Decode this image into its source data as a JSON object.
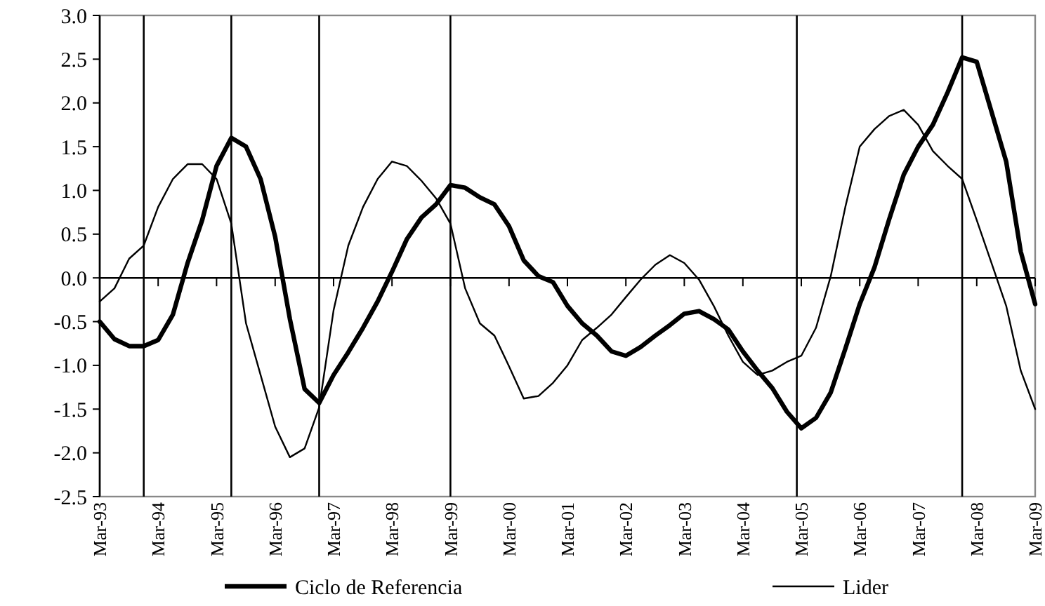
{
  "chart_data": {
    "type": "line",
    "x": [
      "1993-03",
      "1993-06",
      "1993-09",
      "1993-12",
      "1994-03",
      "1994-06",
      "1994-09",
      "1994-12",
      "1995-03",
      "1995-06",
      "1995-09",
      "1995-12",
      "1996-03",
      "1996-06",
      "1996-09",
      "1996-12",
      "1997-03",
      "1997-06",
      "1997-09",
      "1997-12",
      "1998-03",
      "1998-06",
      "1998-09",
      "1998-12",
      "1999-03",
      "1999-06",
      "1999-09",
      "1999-12",
      "2000-03",
      "2000-06",
      "2000-09",
      "2000-12",
      "2001-03",
      "2001-06",
      "2001-09",
      "2001-12",
      "2002-03",
      "2002-06",
      "2002-09",
      "2002-12",
      "2003-03",
      "2003-06",
      "2003-09",
      "2003-12",
      "2004-03",
      "2004-06",
      "2004-09",
      "2004-12",
      "2005-03",
      "2005-06",
      "2005-09",
      "2005-12",
      "2006-03",
      "2006-06",
      "2006-09",
      "2006-12",
      "2007-03",
      "2007-06",
      "2007-09",
      "2007-12",
      "2008-03",
      "2008-06",
      "2008-09",
      "2008-12",
      "2009-03"
    ],
    "series": [
      {
        "name": "Ciclo de Referencia",
        "color": "#000000",
        "values": [
          -0.5,
          -0.7,
          -0.78,
          -0.78,
          -0.71,
          -0.42,
          0.17,
          0.66,
          1.28,
          1.6,
          1.5,
          1.13,
          0.47,
          -0.47,
          -1.27,
          -1.43,
          -1.11,
          -0.85,
          -0.57,
          -0.27,
          0.07,
          0.44,
          0.69,
          0.84,
          1.06,
          1.03,
          0.92,
          0.84,
          0.59,
          0.2,
          0.02,
          -0.05,
          -0.32,
          -0.52,
          -0.66,
          -0.84,
          -0.89,
          -0.79,
          -0.66,
          -0.54,
          -0.41,
          -0.38,
          -0.47,
          -0.59,
          -0.84,
          -1.06,
          -1.26,
          -1.53,
          -1.72,
          -1.6,
          -1.31,
          -0.81,
          -0.3,
          0.12,
          0.67,
          1.18,
          1.5,
          1.75,
          2.12,
          2.52,
          2.47,
          1.9,
          1.33,
          0.3,
          -0.3
        ]
      },
      {
        "name": "Lider",
        "color": "#000000",
        "values": [
          -0.27,
          -0.12,
          0.22,
          0.37,
          0.81,
          1.13,
          1.3,
          1.3,
          1.13,
          0.62,
          -0.52,
          -1.11,
          -1.7,
          -2.05,
          -1.95,
          -1.48,
          -0.37,
          0.37,
          0.81,
          1.13,
          1.33,
          1.28,
          1.11,
          0.91,
          0.62,
          -0.12,
          -0.52,
          -0.66,
          -1.01,
          -1.38,
          -1.35,
          -1.2,
          -1.0,
          -0.71,
          -0.57,
          -0.42,
          -0.22,
          -0.02,
          0.15,
          0.26,
          0.17,
          -0.02,
          -0.32,
          -0.66,
          -0.96,
          -1.11,
          -1.06,
          -0.96,
          -0.89,
          -0.57,
          0.02,
          0.81,
          1.5,
          1.7,
          1.85,
          1.92,
          1.75,
          1.45,
          1.28,
          1.13,
          0.66,
          0.17,
          -0.32,
          -1.06,
          -1.5
        ]
      }
    ],
    "xlim": [
      "1993-03",
      "2009-03"
    ],
    "xticks": [
      {
        "value": "1993-03",
        "label": "Mar-93"
      },
      {
        "value": "1994-03",
        "label": "Mar-94"
      },
      {
        "value": "1995-03",
        "label": "Mar-95"
      },
      {
        "value": "1996-03",
        "label": "Mar-96"
      },
      {
        "value": "1997-03",
        "label": "Mar-97"
      },
      {
        "value": "1998-03",
        "label": "Mar-98"
      },
      {
        "value": "1999-03",
        "label": "Mar-99"
      },
      {
        "value": "2000-03",
        "label": "Mar-00"
      },
      {
        "value": "2001-03",
        "label": "Mar-01"
      },
      {
        "value": "2002-03",
        "label": "Mar-02"
      },
      {
        "value": "2003-03",
        "label": "Mar-03"
      },
      {
        "value": "2004-03",
        "label": "Mar-04"
      },
      {
        "value": "2005-03",
        "label": "Mar-05"
      },
      {
        "value": "2006-03",
        "label": "Mar-06"
      },
      {
        "value": "2007-03",
        "label": "Mar-07"
      },
      {
        "value": "2008-03",
        "label": "Mar-08"
      },
      {
        "value": "2009-03",
        "label": "Mar-09"
      }
    ],
    "ylim": [
      -2.5,
      3.0
    ],
    "yticks": [
      {
        "value": -2.5,
        "label": "-2.5"
      },
      {
        "value": -2.0,
        "label": "-2.0"
      },
      {
        "value": -1.5,
        "label": "-1.5"
      },
      {
        "value": -1.0,
        "label": "-1.0"
      },
      {
        "value": -0.5,
        "label": "-0.5"
      },
      {
        "value": 0,
        "label": "0.0"
      },
      {
        "value": 0.5,
        "label": "0.5"
      },
      {
        "value": 1.0,
        "label": "1.0"
      },
      {
        "value": 1.5,
        "label": "1.5"
      },
      {
        "value": 2.0,
        "label": "2.0"
      },
      {
        "value": 2.5,
        "label": "2.5"
      },
      {
        "value": 3.0,
        "label": "3.0"
      }
    ],
    "ref_lines": [
      {
        "axis": "x",
        "value": "1993-12",
        "color": "#000000"
      },
      {
        "axis": "x",
        "value": "1995-06",
        "color": "#000000"
      },
      {
        "axis": "x",
        "value": "1996-12",
        "color": "#000000"
      },
      {
        "axis": "x",
        "value": "1999-03",
        "color": "#000000"
      },
      {
        "axis": "x",
        "value": "2005-02",
        "color": "#000000"
      },
      {
        "axis": "x",
        "value": "2007-12",
        "color": "#000000"
      }
    ],
    "legend": "bottom",
    "marker": "none",
    "line_style": "solid"
  }
}
